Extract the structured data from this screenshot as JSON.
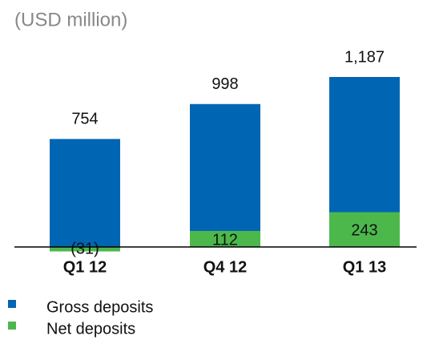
{
  "chart_data": {
    "type": "bar",
    "subtitle": "(USD million)",
    "categories": [
      "Q1 12",
      "Q4 12",
      "Q1 13"
    ],
    "series": [
      {
        "name": "Gross deposits",
        "color": "#0066b3",
        "values": [
          754,
          998,
          1187
        ],
        "value_labels": [
          "754",
          "998",
          "1,187"
        ]
      },
      {
        "name": "Net deposits",
        "color": "#4cb84c",
        "values": [
          -31,
          112,
          243
        ],
        "value_labels": [
          "(31)",
          "112",
          "243"
        ]
      }
    ],
    "overlap": true
  }
}
